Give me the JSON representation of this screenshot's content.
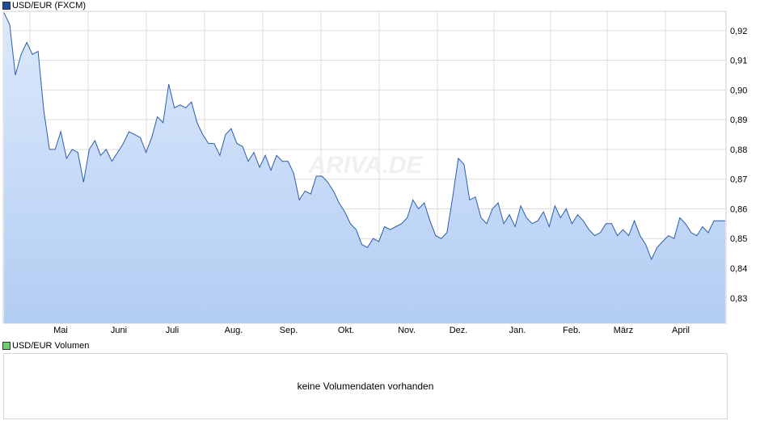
{
  "colors": {
    "line": "#2a5db0",
    "fill_top": "#dde9fb",
    "fill_bottom": "#b2cdf3",
    "grid": "#dcdcdc",
    "price_swatch": "#1f4e9c",
    "volume_swatch": "#6fcf6f"
  },
  "watermark": "ARIVA.DE",
  "legend": {
    "price": "USD/EUR (FXCM)",
    "volume": "USD/EUR Volumen"
  },
  "volume_panel": {
    "message": "keine Volumendaten vorhanden"
  },
  "chart_data": {
    "type": "area",
    "series_name": "USD/EUR (FXCM)",
    "x_ticks": [
      "Mai",
      "Juni",
      "Juli",
      "Aug.",
      "Sep.",
      "Okt.",
      "Nov.",
      "Dez.",
      "Jan.",
      "Feb.",
      "März",
      "April"
    ],
    "y_ticks": [
      "0,83",
      "0,84",
      "0,85",
      "0,86",
      "0,87",
      "0,88",
      "0,89",
      "0,90",
      "0,91",
      "0,92"
    ],
    "ylim": [
      0.8215,
      0.9265
    ],
    "x_range": [
      0,
      127
    ],
    "grid": true,
    "values": [
      [
        0,
        0.926
      ],
      [
        1,
        0.922
      ],
      [
        2,
        0.905
      ],
      [
        3,
        0.912
      ],
      [
        4,
        0.916
      ],
      [
        5,
        0.912
      ],
      [
        6,
        0.913
      ],
      [
        7,
        0.893
      ],
      [
        8,
        0.88
      ],
      [
        9,
        0.88
      ],
      [
        10,
        0.886
      ],
      [
        11,
        0.877
      ],
      [
        12,
        0.88
      ],
      [
        13,
        0.879
      ],
      [
        14,
        0.869
      ],
      [
        15,
        0.88
      ],
      [
        16,
        0.883
      ],
      [
        17,
        0.878
      ],
      [
        18,
        0.88
      ],
      [
        19,
        0.876
      ],
      [
        20,
        0.879
      ],
      [
        21,
        0.882
      ],
      [
        22,
        0.886
      ],
      [
        23,
        0.885
      ],
      [
        24,
        0.884
      ],
      [
        25,
        0.879
      ],
      [
        26,
        0.884
      ],
      [
        27,
        0.891
      ],
      [
        28,
        0.889
      ],
      [
        29,
        0.902
      ],
      [
        30,
        0.894
      ],
      [
        31,
        0.895
      ],
      [
        32,
        0.894
      ],
      [
        33,
        0.896
      ],
      [
        34,
        0.889
      ],
      [
        35,
        0.885
      ],
      [
        36,
        0.882
      ],
      [
        37,
        0.882
      ],
      [
        38,
        0.878
      ],
      [
        39,
        0.885
      ],
      [
        40,
        0.887
      ],
      [
        41,
        0.882
      ],
      [
        42,
        0.881
      ],
      [
        43,
        0.876
      ],
      [
        44,
        0.879
      ],
      [
        45,
        0.874
      ],
      [
        46,
        0.878
      ],
      [
        47,
        0.873
      ],
      [
        48,
        0.878
      ],
      [
        49,
        0.876
      ],
      [
        50,
        0.876
      ],
      [
        51,
        0.872
      ],
      [
        52,
        0.863
      ],
      [
        53,
        0.866
      ],
      [
        54,
        0.865
      ],
      [
        55,
        0.871
      ],
      [
        56,
        0.871
      ],
      [
        57,
        0.869
      ],
      [
        58,
        0.866
      ],
      [
        59,
        0.862
      ],
      [
        60,
        0.859
      ],
      [
        61,
        0.855
      ],
      [
        62,
        0.853
      ],
      [
        63,
        0.848
      ],
      [
        64,
        0.847
      ],
      [
        65,
        0.85
      ],
      [
        66,
        0.849
      ],
      [
        67,
        0.854
      ],
      [
        68,
        0.853
      ],
      [
        69,
        0.854
      ],
      [
        70,
        0.855
      ],
      [
        71,
        0.857
      ],
      [
        72,
        0.863
      ],
      [
        73,
        0.86
      ],
      [
        74,
        0.862
      ],
      [
        75,
        0.856
      ],
      [
        76,
        0.851
      ],
      [
        77,
        0.85
      ],
      [
        78,
        0.852
      ],
      [
        79,
        0.864
      ],
      [
        80,
        0.877
      ],
      [
        81,
        0.875
      ],
      [
        82,
        0.863
      ],
      [
        83,
        0.864
      ],
      [
        84,
        0.857
      ],
      [
        85,
        0.855
      ],
      [
        86,
        0.86
      ],
      [
        87,
        0.862
      ],
      [
        88,
        0.855
      ],
      [
        89,
        0.858
      ],
      [
        90,
        0.854
      ],
      [
        91,
        0.861
      ],
      [
        92,
        0.857
      ],
      [
        93,
        0.855
      ],
      [
        94,
        0.856
      ],
      [
        95,
        0.859
      ],
      [
        96,
        0.854
      ],
      [
        97,
        0.861
      ],
      [
        98,
        0.857
      ],
      [
        99,
        0.86
      ],
      [
        100,
        0.855
      ],
      [
        101,
        0.858
      ],
      [
        102,
        0.856
      ],
      [
        103,
        0.853
      ],
      [
        104,
        0.851
      ],
      [
        105,
        0.852
      ],
      [
        106,
        0.855
      ],
      [
        107,
        0.855
      ],
      [
        108,
        0.851
      ],
      [
        109,
        0.853
      ],
      [
        110,
        0.851
      ],
      [
        111,
        0.856
      ],
      [
        112,
        0.851
      ],
      [
        113,
        0.848
      ],
      [
        114,
        0.843
      ],
      [
        115,
        0.847
      ],
      [
        116,
        0.849
      ],
      [
        117,
        0.851
      ],
      [
        118,
        0.85
      ],
      [
        119,
        0.857
      ],
      [
        120,
        0.855
      ],
      [
        121,
        0.852
      ],
      [
        122,
        0.851
      ],
      [
        123,
        0.854
      ],
      [
        124,
        0.852
      ],
      [
        125,
        0.856
      ],
      [
        126,
        0.856
      ],
      [
        127,
        0.856
      ]
    ]
  }
}
